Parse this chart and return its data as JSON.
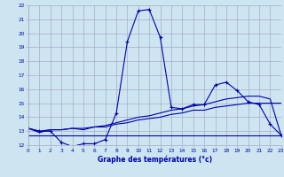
{
  "xlabel": "Graphe des températures (°c)",
  "bg_color": "#cce5f0",
  "grid_color": "#aaaacc",
  "line_color": "#0000aa",
  "xmin": 0,
  "xmax": 23,
  "ymin": 12,
  "ymax": 22,
  "series1_x": [
    0,
    1,
    2,
    3,
    4,
    5,
    6,
    7,
    8,
    9,
    10,
    11,
    12,
    13,
    14,
    15,
    16,
    17,
    18,
    19,
    20,
    21,
    22,
    23
  ],
  "series1_y": [
    13.2,
    13.0,
    13.0,
    12.2,
    11.9,
    12.1,
    12.1,
    12.4,
    14.3,
    19.4,
    21.6,
    21.7,
    19.7,
    14.7,
    14.6,
    14.9,
    14.9,
    16.3,
    16.5,
    15.9,
    15.1,
    14.9,
    13.5,
    12.7
  ],
  "series2_x": [
    0,
    1,
    2,
    3,
    4,
    5,
    6,
    7,
    8,
    9,
    10,
    11,
    12,
    13,
    14,
    15,
    16,
    17,
    18,
    19,
    20,
    21,
    22,
    23
  ],
  "series2_y": [
    13.2,
    13.0,
    13.1,
    13.1,
    13.2,
    13.2,
    13.3,
    13.3,
    13.5,
    13.6,
    13.8,
    13.9,
    14.0,
    14.2,
    14.3,
    14.5,
    14.5,
    14.7,
    14.8,
    14.9,
    15.0,
    15.0,
    15.0,
    15.0
  ],
  "series3_x": [
    0,
    1,
    2,
    3,
    4,
    5,
    6,
    7,
    8,
    9,
    10,
    11,
    12,
    13,
    14,
    15,
    16,
    17,
    18,
    19,
    20,
    21,
    22,
    23
  ],
  "series3_y": [
    13.2,
    12.9,
    13.1,
    13.1,
    13.2,
    13.1,
    13.3,
    13.4,
    13.6,
    13.8,
    14.0,
    14.1,
    14.3,
    14.5,
    14.6,
    14.8,
    14.9,
    15.1,
    15.3,
    15.4,
    15.5,
    15.5,
    15.3,
    12.7
  ],
  "series4_x": [
    0,
    23
  ],
  "series4_y": [
    12.7,
    12.7
  ]
}
